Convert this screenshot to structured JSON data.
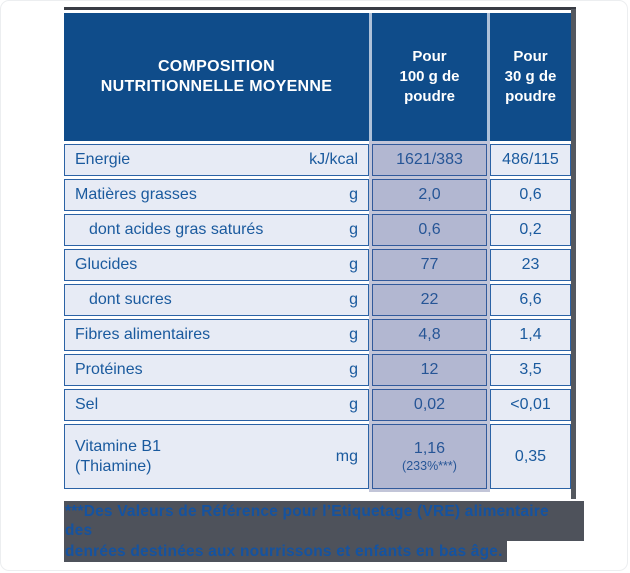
{
  "colors": {
    "header_bg": "#0f4c8a",
    "row_bg": "#e7ebf5",
    "text_blue": "#1a5a9e",
    "cell_border": "#2b62a5",
    "column_highlight": "#b2b8d5",
    "footnote_highlight": "#4e525b",
    "shadow_gray": "#54585f"
  },
  "table": {
    "header": {
      "title_line1": "COMPOSITION",
      "title_line2": "NUTRITIONNELLE MOYENNE",
      "per100_line1": "Pour",
      "per100_line2": "100 g de",
      "per100_line3": "poudre",
      "per30_line1": "Pour",
      "per30_line2": "30 g de",
      "per30_line3": "poudre"
    },
    "rows": [
      {
        "label": "Energie",
        "unit": "kJ/kcal",
        "per100": "1621/383",
        "per30": "486/115"
      },
      {
        "label": "Matières grasses",
        "unit": "g",
        "per100": "2,0",
        "per30": "0,6"
      },
      {
        "label": "dont acides gras saturés",
        "unit": "g",
        "per100": "0,6",
        "per30": "0,2"
      },
      {
        "label": "Glucides",
        "unit": "g",
        "per100": "77",
        "per30": "23"
      },
      {
        "label": "dont sucres",
        "unit": "g",
        "per100": "22",
        "per30": "6,6"
      },
      {
        "label": "Fibres alimentaires",
        "unit": "g",
        "per100": "4,8",
        "per30": "1,4"
      },
      {
        "label": "Protéines",
        "unit": "g",
        "per100": "12",
        "per30": "3,5"
      },
      {
        "label": "Sel",
        "unit": "g",
        "per100": "0,02",
        "per30": "<0,01"
      },
      {
        "label": "Vitamine B1",
        "label_line2": "(Thiamine)",
        "unit": "mg",
        "per100": "1,16",
        "per100_note": "(233%***)",
        "per30": "0,35"
      }
    ]
  },
  "footnote": {
    "line1": "***Des Valeurs de Référence pour l’Etiquetage (VRE) alimentaire des",
    "line2": "denrées destinées aux nourrissons et enfants en bas âge."
  }
}
